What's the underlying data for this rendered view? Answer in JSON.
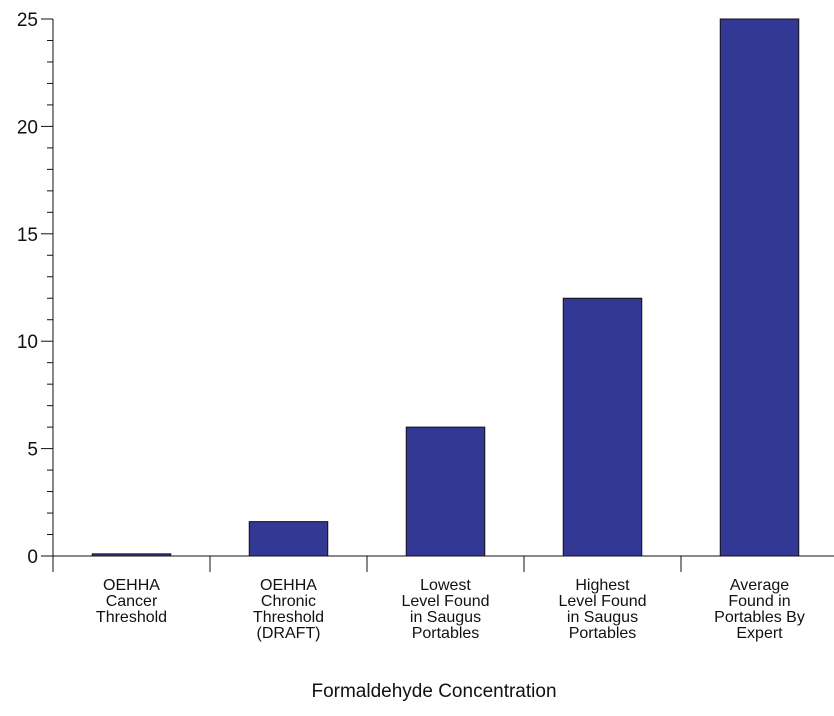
{
  "chart_data": {
    "type": "bar",
    "title": "",
    "xlabel": "Formaldehyde Concentration",
    "ylabel": "",
    "ylim": [
      0,
      25
    ],
    "y_ticks": [
      "0",
      "5",
      "10",
      "15",
      "20",
      "25"
    ],
    "grid": false,
    "categories": [
      [
        "OEHHA",
        "Cancer",
        "Threshold"
      ],
      [
        "OEHHA",
        "Chronic",
        "Threshold",
        "(DRAFT)"
      ],
      [
        "Lowest",
        "Level Found",
        "in Saugus",
        "Portables"
      ],
      [
        "Highest",
        "Level Found",
        "in Saugus",
        "Portables"
      ],
      [
        "Average",
        "Found in",
        "Portables By",
        "Expert"
      ]
    ],
    "values": [
      0.1,
      1.6,
      6,
      12,
      25
    ],
    "colors": {
      "bar_fill": "#333894",
      "bar_stroke": "#111111",
      "axis": "#111111"
    }
  }
}
